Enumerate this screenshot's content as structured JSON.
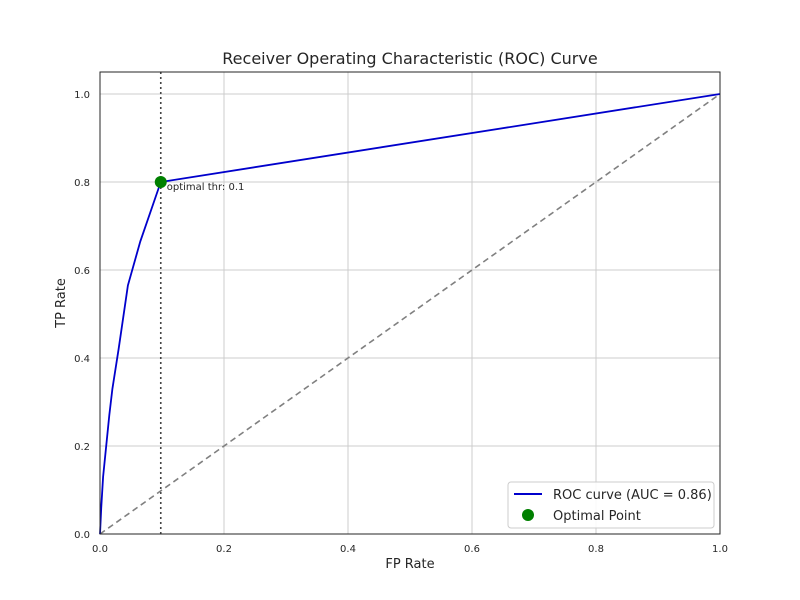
{
  "chart_data": {
    "type": "line",
    "title": "Receiver Operating Characteristic (ROC) Curve",
    "xlabel": "FP Rate",
    "ylabel": "TP Rate",
    "xlim": [
      0.0,
      1.0
    ],
    "ylim": [
      0.0,
      1.05
    ],
    "x_ticks": [
      "0.0",
      "0.2",
      "0.4",
      "0.6",
      "0.8",
      "1.0"
    ],
    "y_ticks": [
      "0.0",
      "0.2",
      "0.4",
      "0.6",
      "0.8",
      "1.0"
    ],
    "grid": true,
    "legend_position": "lower-right",
    "series": [
      {
        "name": "ROC curve (AUC = 0.86)",
        "color": "#0000cc",
        "style": "solid",
        "x": [
          0.0,
          0.002,
          0.005,
          0.01,
          0.015,
          0.02,
          0.03,
          0.045,
          0.065,
          0.098,
          1.0
        ],
        "y": [
          0.0,
          0.06,
          0.13,
          0.2,
          0.27,
          0.33,
          0.42,
          0.565,
          0.665,
          0.8,
          1.0
        ]
      },
      {
        "name": "",
        "color": "#808080",
        "style": "dashed",
        "x": [
          0.0,
          1.0
        ],
        "y": [
          0.0,
          1.0
        ]
      }
    ],
    "optimal_point": {
      "label": "Optimal Point",
      "x": 0.098,
      "y": 0.8,
      "color": "#008000",
      "annotation": "optimal thr: 0.1"
    },
    "vline": {
      "x": 0.098,
      "color": "#444444",
      "style": "dotted"
    }
  }
}
